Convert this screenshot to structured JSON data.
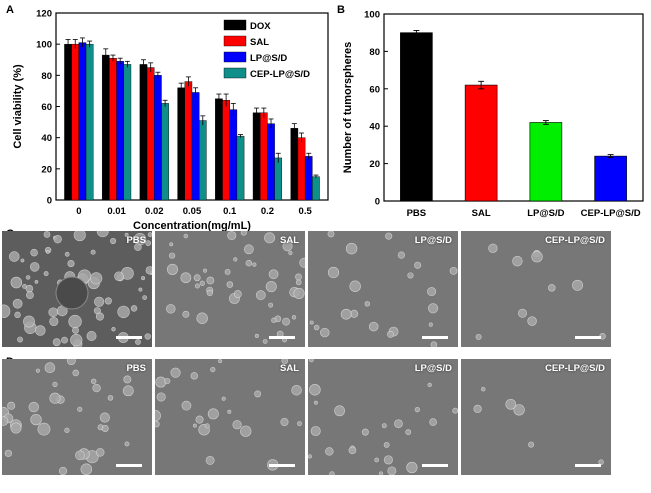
{
  "panels": {
    "a": "A",
    "b": "B",
    "c": "C",
    "d": "D"
  },
  "colors": {
    "DOX": "#000000",
    "SAL": "#ff0000",
    "LP@S/D": "#0000ff",
    "CEP-LP@S/D": "#0f8f8a",
    "PBS_bar": "#000000",
    "SAL_bar": "#ff0000",
    "LPSD_bar": "#00ee00",
    "CEPLPSD_bar": "#0000ff"
  },
  "chart_data": [
    {
      "type": "bar",
      "xlabel": "Concentration(mg/mL)",
      "ylabel": "Cell viability (%)",
      "ylim": [
        0,
        120
      ],
      "yticks": [
        "0",
        "20",
        "40",
        "60",
        "80",
        "100",
        "120"
      ],
      "categories": [
        "0",
        "0.01",
        "0.02",
        "0.05",
        "0.1",
        "0.2",
        "0.5"
      ],
      "legend_position": "top-right",
      "series": [
        {
          "name": "DOX",
          "values": [
            100,
            93,
            87,
            72,
            65,
            56,
            46
          ],
          "errors": [
            3,
            4,
            3,
            3,
            3,
            3,
            3
          ]
        },
        {
          "name": "SAL",
          "values": [
            100,
            91,
            85,
            76,
            64,
            56,
            40
          ],
          "errors": [
            3,
            2,
            3,
            3,
            4,
            3,
            3
          ]
        },
        {
          "name": "LP@S/D",
          "values": [
            101,
            89,
            80,
            69,
            58,
            49,
            28
          ],
          "errors": [
            3,
            2,
            2,
            3,
            4,
            3,
            2
          ]
        },
        {
          "name": "CEP-LP@S/D",
          "values": [
            100,
            87,
            62,
            51,
            41,
            27,
            15
          ],
          "errors": [
            2,
            2,
            2,
            3,
            1,
            3,
            1
          ]
        }
      ]
    },
    {
      "type": "bar",
      "xlabel": "",
      "ylabel": "Number of tumorspheres",
      "ylim": [
        0,
        100
      ],
      "yticks": [
        "0",
        "20",
        "40",
        "60",
        "80",
        "100"
      ],
      "categories": [
        "PBS",
        "SAL",
        "LP@S/D",
        "CEP-LP@S/D"
      ],
      "values": [
        90,
        62,
        42,
        24
      ],
      "errors": [
        1.2,
        2,
        1,
        0.8
      ]
    }
  ],
  "micrographs": {
    "row_c": [
      "PBS",
      "SAL",
      "LP@S/D",
      "CEP-LP@S/D"
    ],
    "row_d": [
      "PBS",
      "SAL",
      "LP@S/D",
      "CEP-LP@S/D"
    ]
  }
}
